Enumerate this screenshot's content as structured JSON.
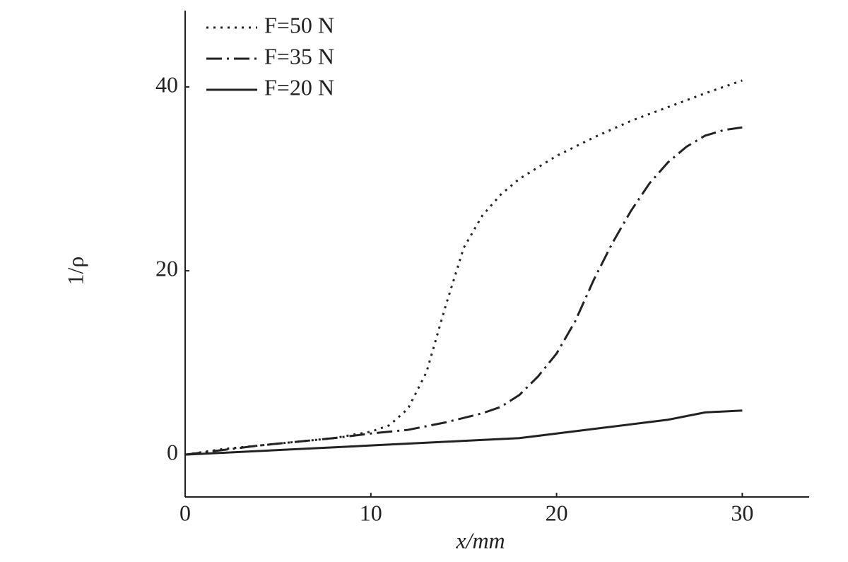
{
  "chart_data": {
    "type": "line",
    "x_label": "x/mm",
    "y_label": "1/ρ",
    "xlim": [
      0,
      33.6
    ],
    "ylim": [
      -4.6,
      48.3
    ],
    "xticks": [
      0,
      10,
      20,
      30
    ],
    "yticks": [
      0,
      20,
      40
    ],
    "legend": "upper left",
    "grid": false,
    "series": [
      {
        "name": "F=50 N",
        "color": "#222222",
        "dash": "dotted",
        "x": [
          0,
          2,
          4,
          6,
          8,
          10,
          11,
          12,
          13,
          14,
          15,
          16,
          17,
          18,
          20,
          22,
          24,
          26,
          28,
          30
        ],
        "values": [
          0,
          0.6,
          1.0,
          1.4,
          1.8,
          2.5,
          3.2,
          5,
          9,
          16,
          22.5,
          26,
          28.3,
          30,
          32.5,
          34.5,
          36.3,
          37.8,
          39.3,
          40.7
        ]
      },
      {
        "name": "F=35 N",
        "color": "#222222",
        "dash": "dashdot",
        "x": [
          0,
          4,
          8,
          10,
          12,
          14,
          16,
          17,
          18,
          19,
          20,
          21,
          22,
          23,
          24,
          25,
          26,
          27,
          28,
          29,
          30
        ],
        "values": [
          0,
          1.0,
          1.8,
          2.3,
          2.7,
          3.5,
          4.5,
          5.2,
          6.5,
          8.5,
          11,
          14.5,
          19,
          23,
          26.5,
          29.5,
          31.8,
          33.5,
          34.7,
          35.3,
          35.6
        ]
      },
      {
        "name": "F=20 N",
        "color": "#222222",
        "dash": "solid",
        "x": [
          0,
          5,
          10,
          15,
          18,
          20,
          22,
          24,
          26,
          28,
          30
        ],
        "values": [
          0,
          0.5,
          1.0,
          1.5,
          1.8,
          2.3,
          2.8,
          3.3,
          3.8,
          4.6,
          4.8
        ]
      }
    ]
  }
}
